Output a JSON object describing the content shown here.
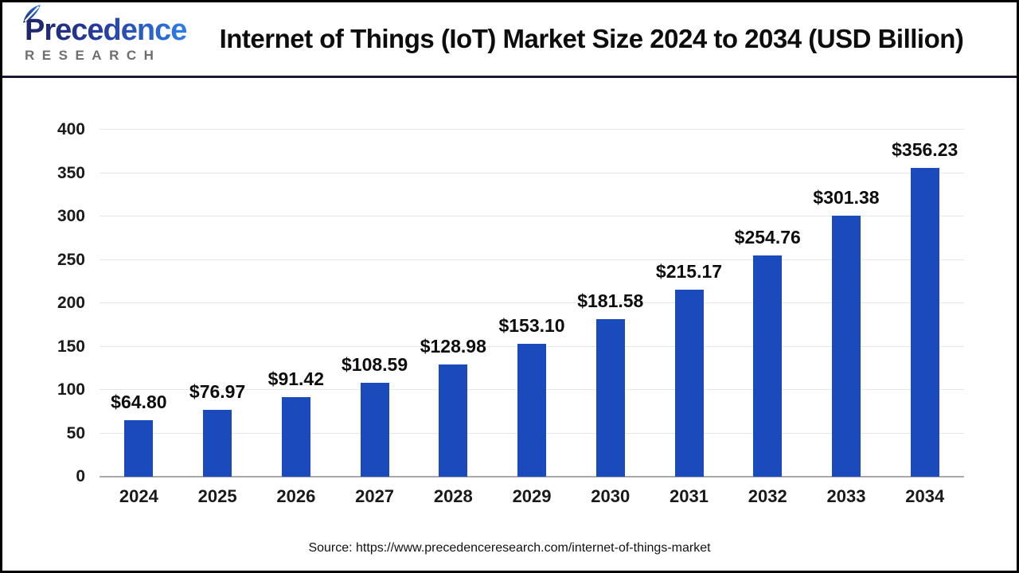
{
  "header": {
    "logo": {
      "line1": "Precedence",
      "line2": "RESEARCH"
    },
    "title": "Internet of Things (IoT) Market Size 2024 to 2034 (USD Billion)"
  },
  "chart_data": {
    "type": "bar",
    "title": "Internet of Things (IoT) Market Size 2024 to 2034 (USD Billion)",
    "categories": [
      "2024",
      "2025",
      "2026",
      "2027",
      "2028",
      "2029",
      "2030",
      "2031",
      "2032",
      "2033",
      "2034"
    ],
    "values": [
      64.8,
      76.97,
      91.42,
      108.59,
      128.98,
      153.1,
      181.58,
      215.17,
      254.76,
      301.38,
      356.23
    ],
    "value_labels": [
      "$64.80",
      "$76.97",
      "$91.42",
      "$108.59",
      "$128.98",
      "$153.10",
      "$181.58",
      "$215.17",
      "$254.76",
      "$301.38",
      "$356.23"
    ],
    "xlabel": "",
    "ylabel": "",
    "ylim": [
      0,
      400
    ],
    "yticks": [
      0,
      50,
      100,
      150,
      200,
      250,
      300,
      350,
      400
    ],
    "grid": true,
    "legend_position": "none",
    "bar_color": "#1A4ABB"
  },
  "footer": {
    "source": "Source: https://www.precedenceresearch.com/internet-of-things-market"
  },
  "colors": {
    "bar": "#1A4ABB",
    "divider": "#191936",
    "axis_line": "#A9A9A9",
    "gridline": "#E7E7E7",
    "logo_navy": "#1E2566",
    "logo_blue": "#2E7DE9",
    "logo_gray": "#6E6E6E"
  }
}
